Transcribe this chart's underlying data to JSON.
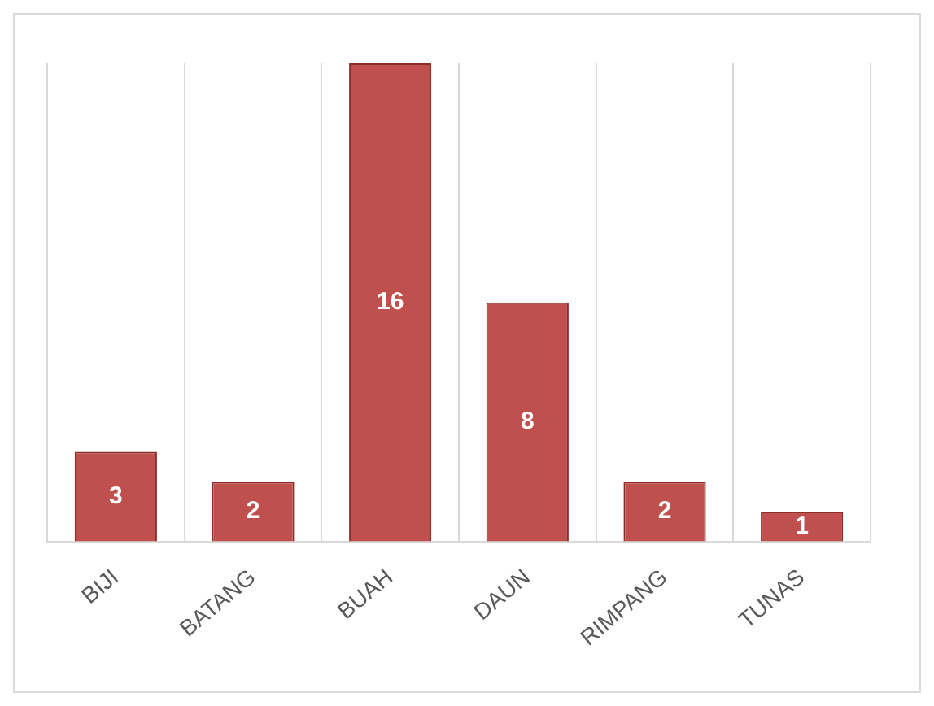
{
  "chart_data": {
    "type": "bar",
    "categories": [
      "BIJI",
      "BATANG",
      "BUAH",
      "DAUN",
      "RIMPANG",
      "TUNAS"
    ],
    "values": [
      3,
      2,
      16,
      8,
      2,
      1
    ],
    "color": "#c0504d",
    "data_labels": true,
    "grid": "x",
    "legend": false
  }
}
